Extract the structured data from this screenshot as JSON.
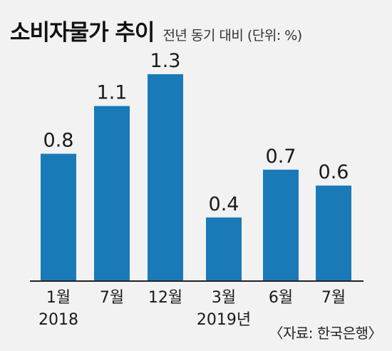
{
  "header": {
    "title": "소비자물가 추이",
    "subtitle": "전년 동기 대비 (단위: %)"
  },
  "source": "〈자료: 한국은행〉",
  "colors": {
    "bar": "#1a7ab8",
    "axis": "#222222",
    "background": "#f2f2f2"
  },
  "chart_data": {
    "type": "bar",
    "title": "소비자물가 추이",
    "subtitle": "전년 동기 대비 (단위: %)",
    "categories": [
      "1월",
      "7월",
      "12월",
      "3월",
      "6월",
      "7월"
    ],
    "year_labels": [
      "2018",
      "",
      "",
      "2019년",
      "",
      ""
    ],
    "values": [
      0.8,
      1.1,
      1.3,
      0.4,
      0.7,
      0.6
    ],
    "value_labels": [
      "0.8",
      "1.1",
      "1.3",
      "0.4",
      "0.7",
      "0.6"
    ],
    "ylim": [
      0,
      1.3
    ],
    "grid": false,
    "legend": "none"
  }
}
